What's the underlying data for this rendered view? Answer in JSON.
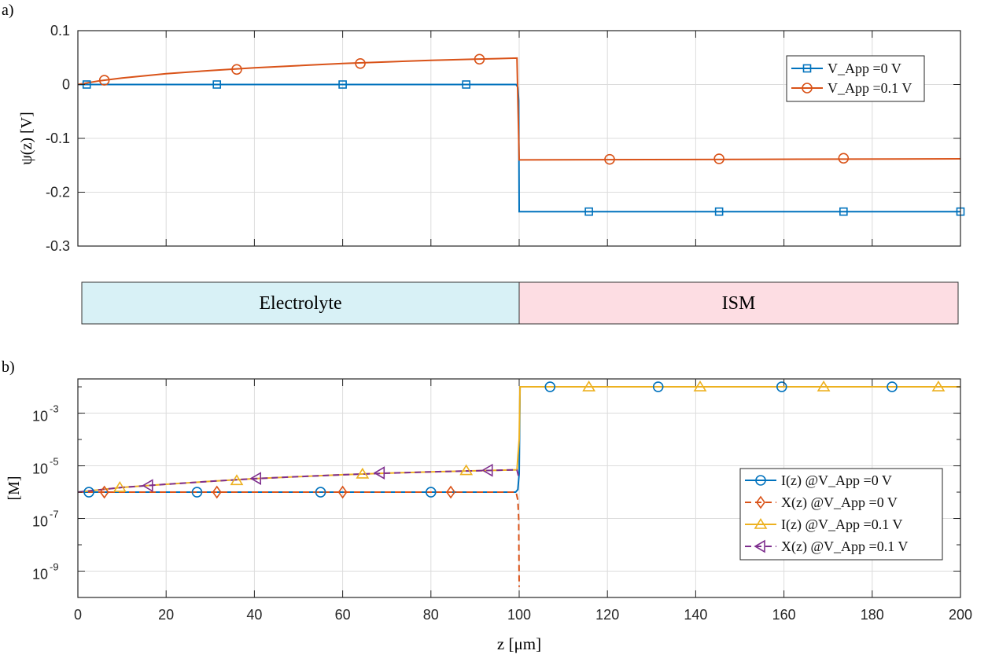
{
  "panel_labels": {
    "a": "a)",
    "b": "b)"
  },
  "regions": [
    {
      "label": "Electrolyte",
      "color": "#d8f1f6",
      "range": [
        0,
        100
      ]
    },
    {
      "label": "ISM",
      "color": "#fddde3",
      "range": [
        100,
        200
      ]
    }
  ],
  "chart_data": [
    {
      "type": "line",
      "panel": "a",
      "xlabel": "",
      "ylabel": "ψ(z) [V]",
      "xlim": [
        0,
        200
      ],
      "ylim": [
        -0.3,
        0.1
      ],
      "xticks": [
        0,
        20,
        40,
        60,
        80,
        100,
        120,
        140,
        160,
        180,
        200
      ],
      "show_xtick_labels": false,
      "yticks": [
        -0.3,
        -0.2,
        -0.1,
        0,
        0.1
      ],
      "ytick_labels": [
        "-0.3",
        "-0.2",
        "-0.1",
        "0",
        "0.1"
      ],
      "grid": true,
      "legend_position": "top-right",
      "series": [
        {
          "name": "V_App =0 V",
          "color": "#0072BD",
          "marker": "square",
          "linestyle": "solid",
          "x": [
            0,
            99.3,
            99.7,
            99.9,
            100,
            100.1,
            200
          ],
          "y": [
            0,
            0,
            -0.005,
            -0.03,
            -0.236,
            -0.236,
            -0.236
          ],
          "marker_x": [
            2,
            31.5,
            60,
            88,
            115.8,
            145.3,
            173.5,
            200
          ],
          "marker_y": [
            0,
            0,
            0,
            0,
            -0.236,
            -0.236,
            -0.236,
            -0.236
          ]
        },
        {
          "name": "V_App =0.1 V",
          "color": "#D95319",
          "marker": "circle",
          "linestyle": "solid",
          "x": [
            0,
            5,
            10,
            20,
            30,
            40,
            50,
            60,
            70,
            80,
            90,
            99.5,
            100,
            100.1,
            150,
            200
          ],
          "y": [
            0,
            0.007,
            0.012,
            0.02,
            0.026,
            0.031,
            0.035,
            0.039,
            0.042,
            0.045,
            0.047,
            0.049,
            -0.14,
            -0.14,
            -0.139,
            -0.138
          ],
          "marker_x": [
            6,
            36,
            64,
            91,
            120.5,
            145.3,
            173.5
          ],
          "marker_y": [
            0.008,
            0.028,
            0.039,
            0.047,
            -0.139,
            -0.138,
            -0.137
          ]
        }
      ]
    },
    {
      "type": "line",
      "panel": "b",
      "xlabel": "z [μm]",
      "ylabel": "[M]",
      "xlim": [
        0,
        200
      ],
      "ylim_log10": [
        -10,
        -1.7
      ],
      "yscale": "log",
      "xticks": [
        0,
        20,
        40,
        60,
        80,
        100,
        120,
        140,
        160,
        180,
        200
      ],
      "xtick_labels": [
        "0",
        "20",
        "40",
        "60",
        "80",
        "100",
        "120",
        "140",
        "160",
        "180",
        "200"
      ],
      "yticks_log10": [
        -9,
        -7,
        -5,
        -3
      ],
      "ytick_labels": [
        "10",
        "10",
        "10",
        "10"
      ],
      "ytick_exponents": [
        "-9",
        "-7",
        "-5",
        "-3"
      ],
      "grid": true,
      "legend_position": "right",
      "series": [
        {
          "name": "I(z)  @V_App =0 V",
          "color": "#0072BD",
          "marker": "circle",
          "linestyle": "solid",
          "x": [
            0,
            99.2,
            99.7,
            100,
            100.2,
            200
          ],
          "log10_y": [
            -6,
            -6,
            -5.9,
            -5.3,
            -2,
            -2
          ],
          "marker_x": [
            2.5,
            27,
            55,
            80,
            107,
            131.5,
            159.5,
            184.5
          ],
          "marker_log10_y": [
            -6,
            -6,
            -6,
            -6,
            -2,
            -2,
            -2,
            -2
          ]
        },
        {
          "name": "X(z) @V_App =0 V",
          "color": "#D95319",
          "marker": "diamond",
          "linestyle": "dashed",
          "x": [
            0,
            99.3,
            99.7,
            99.9,
            100
          ],
          "log10_y": [
            -6,
            -6,
            -6.3,
            -7,
            -9.6
          ],
          "marker_x": [
            6,
            31.5,
            60,
            84.5
          ],
          "marker_log10_y": [
            -6,
            -6,
            -6,
            -6
          ]
        },
        {
          "name": "I(z)  @V_App =0.1 V",
          "color": "#EDB120",
          "marker": "triangle-up",
          "linestyle": "solid",
          "x": [
            0,
            10,
            20,
            30,
            40,
            50,
            60,
            70,
            80,
            90,
            99.5,
            100,
            100.2,
            200
          ],
          "log10_y": [
            -6,
            -5.82,
            -5.7,
            -5.59,
            -5.49,
            -5.41,
            -5.34,
            -5.28,
            -5.23,
            -5.19,
            -5.15,
            -4,
            -2,
            -2
          ],
          "marker_x": [
            9.5,
            36,
            64.5,
            88,
            115.8,
            141,
            169,
            195
          ],
          "marker_log10_y": [
            -5.82,
            -5.56,
            -5.31,
            -5.18,
            -2,
            -2,
            -2,
            -2
          ]
        },
        {
          "name": "X(z) @V_App =0.1 V",
          "color": "#7E2F8E",
          "marker": "triangle-left",
          "linestyle": "dashed",
          "x": [
            0,
            10,
            20,
            30,
            40,
            50,
            60,
            70,
            80,
            90,
            99.5,
            100
          ],
          "log10_y": [
            -6,
            -5.82,
            -5.7,
            -5.59,
            -5.49,
            -5.41,
            -5.34,
            -5.28,
            -5.23,
            -5.19,
            -5.15,
            -5.5
          ],
          "marker_x": [
            16,
            40.5,
            68.5,
            93
          ],
          "marker_log10_y": [
            -5.75,
            -5.48,
            -5.27,
            -5.17
          ]
        }
      ]
    }
  ]
}
